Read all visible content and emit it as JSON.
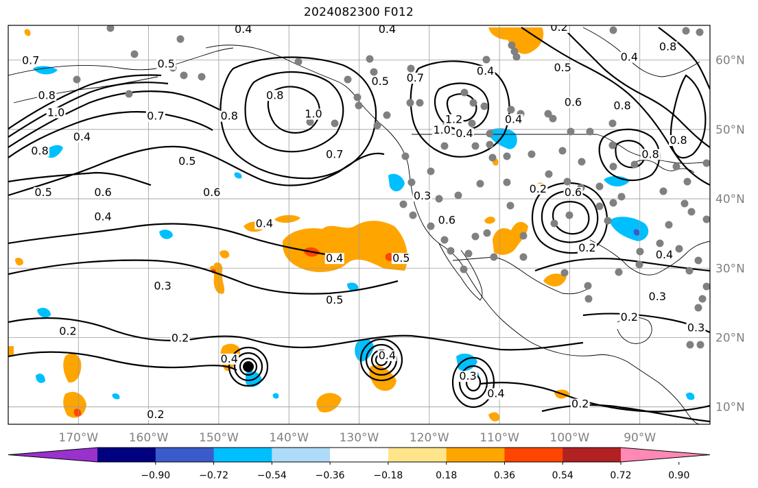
{
  "title": "2024082300 F012",
  "map": {
    "lon_range": [
      -180,
      -80
    ],
    "lat_range": [
      7.5,
      65
    ],
    "lon_ticks": [
      {
        "value": -170,
        "label": "170°W"
      },
      {
        "value": -160,
        "label": "160°W"
      },
      {
        "value": -150,
        "label": "150°W"
      },
      {
        "value": -140,
        "label": "140°W"
      },
      {
        "value": -130,
        "label": "130°W"
      },
      {
        "value": -120,
        "label": "120°W"
      },
      {
        "value": -110,
        "label": "110°W"
      },
      {
        "value": -100,
        "label": "100°W"
      },
      {
        "value": -90,
        "label": "90°W"
      }
    ],
    "lat_ticks": [
      {
        "value": 10,
        "label": "10°N"
      },
      {
        "value": 20,
        "label": "20°N"
      },
      {
        "value": 30,
        "label": "30°N"
      },
      {
        "value": 40,
        "label": "40°N"
      },
      {
        "value": 50,
        "label": "50°N"
      },
      {
        "value": 60,
        "label": "60°N"
      }
    ],
    "contour_labels": [
      {
        "text": "0.7",
        "lon": -176.8,
        "lat": 59.5
      },
      {
        "text": "0.8",
        "lon": -174.5,
        "lat": 54.5
      },
      {
        "text": "1.0",
        "lon": -173.2,
        "lat": 52.0
      },
      {
        "text": "0.4",
        "lon": -169.5,
        "lat": 48.5
      },
      {
        "text": "0.8",
        "lon": -175.5,
        "lat": 46.5
      },
      {
        "text": "0.5",
        "lon": -175.0,
        "lat": 40.5
      },
      {
        "text": "0.6",
        "lon": -166.5,
        "lat": 40.5
      },
      {
        "text": "0.7",
        "lon": -159.0,
        "lat": 51.5
      },
      {
        "text": "0.5",
        "lon": -157.5,
        "lat": 59.0
      },
      {
        "text": "0.8",
        "lon": -148.5,
        "lat": 51.5
      },
      {
        "text": "0.4",
        "lon": -146.5,
        "lat": 64.0
      },
      {
        "text": "0.5",
        "lon": -154.5,
        "lat": 45.0
      },
      {
        "text": "0.6",
        "lon": -151.0,
        "lat": 40.5
      },
      {
        "text": "0.8",
        "lon": -142.0,
        "lat": 54.5
      },
      {
        "text": "1.0",
        "lon": -136.5,
        "lat": 51.8
      },
      {
        "text": "0.7",
        "lon": -133.5,
        "lat": 46.0
      },
      {
        "text": "0.4",
        "lon": -126.0,
        "lat": 64.0
      },
      {
        "text": "0.5",
        "lon": -127.0,
        "lat": 56.5
      },
      {
        "text": "0.7",
        "lon": -122.0,
        "lat": 57.0
      },
      {
        "text": "1.2",
        "lon": -116.5,
        "lat": 51.0
      },
      {
        "text": "1.0",
        "lon": -118.2,
        "lat": 49.5
      },
      {
        "text": "0.4",
        "lon": -115.0,
        "lat": 49.0
      },
      {
        "text": "0.4",
        "lon": -112.0,
        "lat": 58.0
      },
      {
        "text": "0.4",
        "lon": -108.0,
        "lat": 51.0
      },
      {
        "text": "0.2",
        "lon": -101.5,
        "lat": 64.3
      },
      {
        "text": "0.5",
        "lon": -101.0,
        "lat": 58.5
      },
      {
        "text": "0.6",
        "lon": -99.5,
        "lat": 53.5
      },
      {
        "text": "0.8",
        "lon": -86.0,
        "lat": 61.5
      },
      {
        "text": "0.4",
        "lon": -91.5,
        "lat": 60.0
      },
      {
        "text": "0.8",
        "lon": -92.5,
        "lat": 53.0
      },
      {
        "text": "0.8",
        "lon": -88.5,
        "lat": 46.0
      },
      {
        "text": "0.8",
        "lon": -84.5,
        "lat": 48.0
      },
      {
        "text": "0.3",
        "lon": -121.0,
        "lat": 40.0
      },
      {
        "text": "0.2",
        "lon": -104.5,
        "lat": 41.0
      },
      {
        "text": "0.6",
        "lon": -99.5,
        "lat": 40.5
      },
      {
        "text": "0.6",
        "lon": -117.5,
        "lat": 36.5
      },
      {
        "text": "0.5",
        "lon": -124.0,
        "lat": 31.0
      },
      {
        "text": "0.4",
        "lon": -143.5,
        "lat": 36.0
      },
      {
        "text": "0.4",
        "lon": -166.5,
        "lat": 37.0
      },
      {
        "text": "0.4",
        "lon": -133.5,
        "lat": 31.0
      },
      {
        "text": "0.5",
        "lon": -133.5,
        "lat": 25.0
      },
      {
        "text": "0.3",
        "lon": -158.0,
        "lat": 27.0
      },
      {
        "text": "0.2",
        "lon": -171.5,
        "lat": 20.5
      },
      {
        "text": "0.2",
        "lon": -155.5,
        "lat": 19.5
      },
      {
        "text": "0.2",
        "lon": -97.5,
        "lat": 32.5
      },
      {
        "text": "0.4",
        "lon": -86.5,
        "lat": 31.5
      },
      {
        "text": "0.3",
        "lon": -87.5,
        "lat": 25.5
      },
      {
        "text": "0.2",
        "lon": -91.5,
        "lat": 22.5
      },
      {
        "text": "0.3",
        "lon": -82.0,
        "lat": 21.0
      },
      {
        "text": "0.2",
        "lon": -98.5,
        "lat": 10.0
      },
      {
        "text": "0.2",
        "lon": -159.0,
        "lat": 8.5
      },
      {
        "text": "0.4",
        "lon": -148.5,
        "lat": 16.5
      },
      {
        "text": "0.4",
        "lon": -126.0,
        "lat": 17.0
      },
      {
        "text": "0.3",
        "lon": -114.5,
        "lat": 14.0
      },
      {
        "text": "0.4",
        "lon": -110.5,
        "lat": 11.5
      }
    ]
  },
  "colorbar": {
    "ticks": [
      "−0.90",
      "−0.72",
      "−0.54",
      "−0.36",
      "−0.18",
      "0.18",
      "0.36",
      "0.54",
      "0.72",
      "0.90"
    ],
    "colors": [
      "#9932cc",
      "#000080",
      "#3a5bcc",
      "#00bfff",
      "#aedcf8",
      "#ffffff",
      "#ffe58a",
      "#ffa500",
      "#ff4500",
      "#b22222",
      "#ff88b4"
    ]
  },
  "legend_colors": {
    "positive_fill_low": "#ffa500",
    "positive_fill_mid": "#ff4500",
    "negative_fill": "#00bfff",
    "negative_fill_light": "#aedcf8",
    "station_dot": "#808080",
    "contour_line": "#000000"
  }
}
